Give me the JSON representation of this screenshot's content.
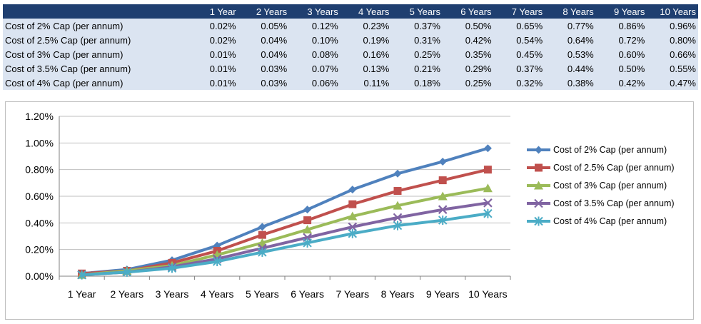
{
  "table": {
    "columns": [
      "1 Year",
      "2 Years",
      "3 Years",
      "4 Years",
      "5 Years",
      "6 Years",
      "7 Years",
      "8 Years",
      "9 Years",
      "10 Years"
    ],
    "rows": [
      {
        "label": "Cost of 2% Cap (per annum)",
        "values": [
          "0.02%",
          "0.05%",
          "0.12%",
          "0.23%",
          "0.37%",
          "0.50%",
          "0.65%",
          "0.77%",
          "0.86%",
          "0.96%"
        ]
      },
      {
        "label": "Cost of 2.5% Cap (per annum)",
        "values": [
          "0.02%",
          "0.04%",
          "0.10%",
          "0.19%",
          "0.31%",
          "0.42%",
          "0.54%",
          "0.64%",
          "0.72%",
          "0.80%"
        ]
      },
      {
        "label": "Cost of 3% Cap (per annum)",
        "values": [
          "0.01%",
          "0.04%",
          "0.08%",
          "0.16%",
          "0.25%",
          "0.35%",
          "0.45%",
          "0.53%",
          "0.60%",
          "0.66%"
        ]
      },
      {
        "label": "Cost of 3.5% Cap (per annum)",
        "values": [
          "0.01%",
          "0.03%",
          "0.07%",
          "0.13%",
          "0.21%",
          "0.29%",
          "0.37%",
          "0.44%",
          "0.50%",
          "0.55%"
        ]
      },
      {
        "label": "Cost of 4% Cap (per annum)",
        "values": [
          "0.01%",
          "0.03%",
          "0.06%",
          "0.11%",
          "0.18%",
          "0.25%",
          "0.32%",
          "0.38%",
          "0.42%",
          "0.47%"
        ]
      }
    ]
  },
  "chart_data": {
    "type": "line",
    "categories": [
      "1 Year",
      "2 Years",
      "3 Years",
      "4 Years",
      "5 Years",
      "6 Years",
      "7 Years",
      "8 Years",
      "9 Years",
      "10 Years"
    ],
    "ylim": [
      0,
      1.2
    ],
    "y_ticks": [
      0,
      0.2,
      0.4,
      0.6,
      0.8,
      1.0,
      1.2
    ],
    "y_tick_labels": [
      "0.00%",
      "0.20%",
      "0.40%",
      "0.60%",
      "0.80%",
      "1.00%",
      "1.20%"
    ],
    "grid": true,
    "legend_position": "right",
    "series": [
      {
        "name": "Cost of 2% Cap (per annum)",
        "color": "#4f81bd",
        "marker": "diamond",
        "values": [
          0.02,
          0.05,
          0.12,
          0.23,
          0.37,
          0.5,
          0.65,
          0.77,
          0.86,
          0.96
        ]
      },
      {
        "name": "Cost of 2.5% Cap (per annum)",
        "color": "#c0504d",
        "marker": "square",
        "values": [
          0.02,
          0.04,
          0.1,
          0.19,
          0.31,
          0.42,
          0.54,
          0.64,
          0.72,
          0.8
        ]
      },
      {
        "name": "Cost of 3% Cap (per annum)",
        "color": "#9bbb59",
        "marker": "triangle",
        "values": [
          0.01,
          0.04,
          0.08,
          0.16,
          0.25,
          0.35,
          0.45,
          0.53,
          0.6,
          0.66
        ]
      },
      {
        "name": "Cost of 3.5% Cap (per annum)",
        "color": "#8064a2",
        "marker": "x",
        "values": [
          0.01,
          0.03,
          0.07,
          0.13,
          0.21,
          0.29,
          0.37,
          0.44,
          0.5,
          0.55
        ]
      },
      {
        "name": "Cost of 4% Cap (per annum)",
        "color": "#4bacc6",
        "marker": "star",
        "values": [
          0.01,
          0.03,
          0.06,
          0.11,
          0.18,
          0.25,
          0.32,
          0.38,
          0.42,
          0.47
        ]
      }
    ]
  }
}
